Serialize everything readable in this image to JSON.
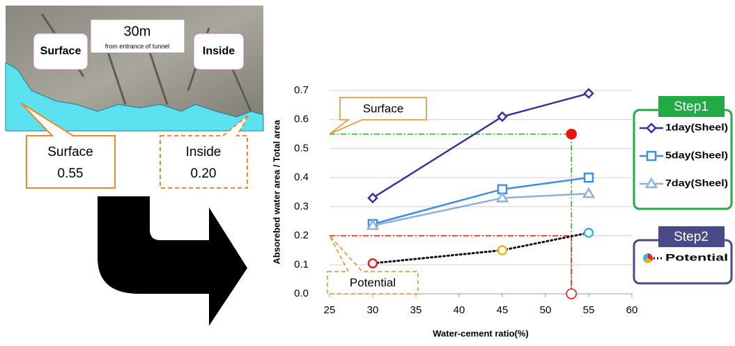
{
  "photo": {
    "distance": "30m",
    "distance_note": "from entrance of tunnel",
    "label_left": "Surface",
    "label_right": "Inside"
  },
  "callouts": {
    "surface_title": "Surface",
    "surface_value": "0.55",
    "inside_title": "Inside",
    "inside_value": "0.20"
  },
  "chart_data": {
    "type": "line",
    "xlabel": "Water-cement ratio(%)",
    "ylabel": "Absorebed water area / Total area",
    "x": [
      30,
      45,
      55
    ],
    "series": [
      {
        "name": "1day(Sheel)",
        "color": "#33339f",
        "marker": "diamond",
        "dash": "solid",
        "values": [
          0.33,
          0.61,
          0.69
        ]
      },
      {
        "name": "5day(Sheel)",
        "color": "#3d8fe0",
        "marker": "square",
        "dash": "solid",
        "values": [
          0.24,
          0.36,
          0.4
        ]
      },
      {
        "name": "7day(Sheel)",
        "color": "#8fb0de",
        "marker": "triangle",
        "dash": "solid",
        "values": [
          0.235,
          0.33,
          0.345
        ]
      },
      {
        "name": "Potential",
        "color": "#111111",
        "marker": "circle",
        "dash": "dotted",
        "marker_colors": [
          "#ee2222",
          "#f0b020",
          "#33b5e8"
        ],
        "values": [
          0.105,
          0.15,
          0.21
        ]
      }
    ],
    "xlim": [
      25,
      60
    ],
    "xticks": [
      25,
      30,
      35,
      40,
      45,
      50,
      55,
      60
    ],
    "ylim": [
      0,
      0.7
    ],
    "yticks": [
      {
        "value": 0,
        "label": "0.0"
      },
      0.1,
      0.2,
      0.3,
      0.4,
      0.5,
      0.6,
      0.7
    ],
    "grid": true,
    "reference_lines": [
      {
        "x": 53,
        "y": 0.55,
        "color": "#22aa22",
        "label": "Surface"
      },
      {
        "x": 53,
        "y": 0.2,
        "color": "#ee1111",
        "label": "Potential"
      }
    ],
    "points": [
      {
        "x": 53,
        "y": 0.55,
        "color": "#ee1111",
        "filled": true
      },
      {
        "x": 53,
        "y": 0,
        "color": "#ee1111",
        "filled": false
      }
    ],
    "legend_groups": [
      {
        "title": "Step1",
        "color": "#22aa44",
        "series": [
          0,
          1,
          2
        ]
      },
      {
        "title": "Step2",
        "color": "#4a4a88",
        "series": [
          3
        ]
      }
    ]
  }
}
